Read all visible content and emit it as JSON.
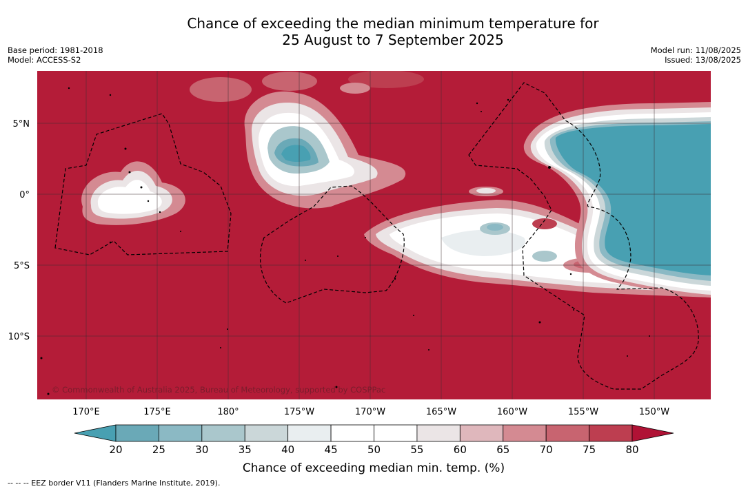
{
  "title": {
    "line1": "Chance of exceeding the median minimum temperature for",
    "line2": "25 August to 7 September 2025"
  },
  "meta_left": {
    "base_period": "Base period: 1981-2018",
    "model": "Model: ACCESS-S2"
  },
  "meta_right": {
    "model_run": "Model run: 11/08/2025",
    "issued": "Issued: 13/08/2025"
  },
  "map": {
    "lat_labels": [
      "5°N",
      "0°",
      "5°S",
      "10°S"
    ],
    "lon_labels": [
      "170°E",
      "175°E",
      "180°",
      "175°W",
      "170°W",
      "165°W",
      "160°W",
      "155°W",
      "150°W"
    ],
    "copyright": "© Commonwealth of Australia 2025, Bureau of Meteorology, supported by COSPPac",
    "colors": {
      "background_high": "#b41c38",
      "low": "#48a0b2"
    }
  },
  "colorbar": {
    "tick_labels": [
      "20",
      "25",
      "30",
      "35",
      "40",
      "45",
      "50",
      "55",
      "60",
      "65",
      "70",
      "75",
      "80"
    ],
    "colors": [
      "#48a0b2",
      "#6aa9b7",
      "#8bb9c4",
      "#aac7cc",
      "#cbd7d9",
      "#e9eef0",
      "#ffffff",
      "#ffffff",
      "#ebe5e6",
      "#dfb7bc",
      "#d48a92",
      "#c86470",
      "#bd3e50",
      "#b01235"
    ],
    "title": "Chance of exceeding median min. temp. (%)"
  },
  "footer": {
    "eez_text": "-- -- -- EEZ border V11 (Flanders Marine Institute, 2019)."
  }
}
